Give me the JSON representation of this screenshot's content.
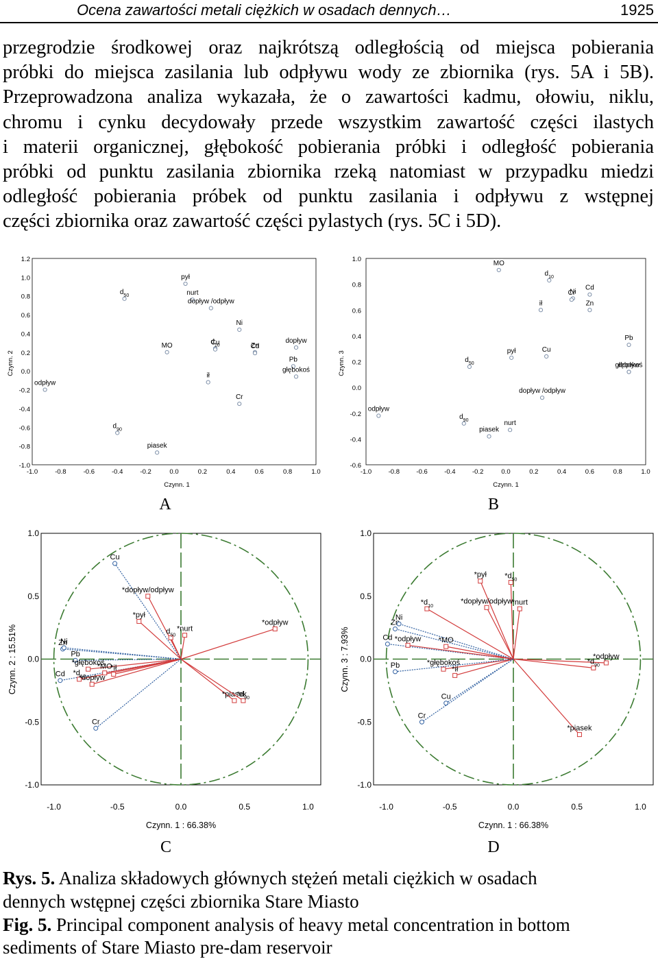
{
  "header": {
    "title": "Ocena zawartości metali ciężkich w osadach dennych…",
    "page": "1925"
  },
  "body_lines": [
    "przegrodzie środkowej oraz najkrótszą odległością od miejsca pobierania",
    "próbki do miejsca zasilania lub odpływu wody ze zbiornika (rys. 5A i 5B).",
    "Przeprowadzona analiza wykazała, że o zawartości kadmu, ołowiu, niklu,",
    "chromu i cynku decydowały przede wszystkim zawartość części ilastych",
    "i materii organicznej, głębokość pobierania próbki i odległość pobierania",
    "próbki od punktu zasilania zbiornika rzeką natomiast w przypadku miedzi",
    "odległość pobierania próbek od punktu zasilania i odpływu z wstępnej",
    "części zbiornika oraz zawartość części pylastych (rys. 5C i 5D)."
  ],
  "caption": {
    "rys_label": "Rys. 5.",
    "rys_text_1": " Analiza składowych głównych stężeń metali ciężkich w osadach",
    "rys_text_2": "dennych wstępnej części zbiornika Stare Miasto",
    "fig_label": "Fig. 5.",
    "fig_text_1": " Principal component analysis of heavy metal concentration in bottom",
    "fig_text_2": "sediments of Stare Miasto pre-dam reservoir"
  },
  "colors": {
    "active": "#d23a3a",
    "supp": "#2f5fa0",
    "circle": "#3a7a30",
    "marker": "#7d8fa8"
  },
  "chart_data": [
    {
      "panel": "A",
      "type": "scatter",
      "xlabel": "Czynn. 1",
      "ylabel": "Czynn. 2",
      "xlim": [
        -1.0,
        1.0
      ],
      "ylim": [
        -1.0,
        1.2
      ],
      "xticks": [
        "-1.0",
        "-0.8",
        "-0.6",
        "-0.4",
        "-0.2",
        "0.0",
        "0.2",
        "0.4",
        "0.6",
        "0.8",
        "1.0"
      ],
      "yticks": [
        "1.2",
        "1.0",
        "0.8",
        "0.6",
        "0.4",
        "0.2",
        "0.0",
        "-0.2",
        "-0.4",
        "-0.6",
        "-0.8",
        "-1.0"
      ],
      "points": [
        {
          "label": "odpływ",
          "x": -0.91,
          "y": -0.2
        },
        {
          "label": "d",
          "sub": "50",
          "x": -0.35,
          "y": 0.77
        },
        {
          "label": "pył",
          "x": 0.08,
          "y": 0.93
        },
        {
          "label": "nurt",
          "x": 0.13,
          "y": 0.76
        },
        {
          "label": "dopływ /odpływ",
          "x": 0.26,
          "y": 0.67
        },
        {
          "label": "Ni",
          "x": 0.46,
          "y": 0.44
        },
        {
          "label": "MO",
          "x": -0.05,
          "y": 0.2
        },
        {
          "label": "d",
          "sub": "10",
          "x": 0.29,
          "y": 0.24
        },
        {
          "label": "Cu",
          "x": 0.29,
          "y": 0.23
        },
        {
          "label": "Zn",
          "x": 0.57,
          "y": 0.2
        },
        {
          "label": "Cd",
          "x": 0.57,
          "y": 0.19
        },
        {
          "label": "dopływ",
          "x": 0.86,
          "y": 0.25
        },
        {
          "label": "Pb",
          "x": 0.84,
          "y": 0.05
        },
        {
          "label": "głębokoś",
          "x": 0.86,
          "y": -0.06
        },
        {
          "label": "ił",
          "x": 0.24,
          "y": -0.12
        },
        {
          "label": "Cr",
          "x": 0.46,
          "y": -0.35
        },
        {
          "label": "d",
          "sub": "90",
          "x": -0.4,
          "y": -0.66
        },
        {
          "label": "piasek",
          "x": -0.12,
          "y": -0.87
        }
      ]
    },
    {
      "panel": "B",
      "type": "scatter",
      "xlabel": "Czynn. 1",
      "ylabel": "Czynn. 3",
      "xlim": [
        -1.0,
        1.0
      ],
      "ylim": [
        -0.6,
        1.0
      ],
      "xticks": [
        "-1.0",
        "-0.8",
        "-0.6",
        "-0.4",
        "-0.2",
        "0.0",
        "0.2",
        "0.4",
        "0.6",
        "0.8",
        "1.0"
      ],
      "yticks": [
        "1.0",
        "0.8",
        "0.6",
        "0.4",
        "0.2",
        "0.0",
        "-0.2",
        "-0.4",
        "-0.6"
      ],
      "points": [
        {
          "label": "MO",
          "x": -0.05,
          "y": 0.91
        },
        {
          "label": "d",
          "sub": "10",
          "x": 0.31,
          "y": 0.83
        },
        {
          "label": "Cd",
          "x": 0.6,
          "y": 0.72
        },
        {
          "label": "Ni",
          "x": 0.48,
          "y": 0.69
        },
        {
          "label": "Cr",
          "x": 0.47,
          "y": 0.68
        },
        {
          "label": "ił",
          "x": 0.25,
          "y": 0.6
        },
        {
          "label": "Zn",
          "x": 0.6,
          "y": 0.6
        },
        {
          "label": "Pb",
          "x": 0.88,
          "y": 0.33
        },
        {
          "label": "dopływ",
          "x": 0.88,
          "y": 0.12
        },
        {
          "label": "głębokoś",
          "x": 0.88,
          "y": 0.12
        },
        {
          "label": "d",
          "sub": "50",
          "x": -0.26,
          "y": 0.16
        },
        {
          "label": "pył",
          "x": 0.04,
          "y": 0.23
        },
        {
          "label": "Cu",
          "x": 0.29,
          "y": 0.24
        },
        {
          "label": "dopływ /odpływ",
          "x": 0.26,
          "y": -0.08
        },
        {
          "label": "odpływ",
          "x": -0.91,
          "y": -0.22
        },
        {
          "label": "d",
          "sub": "90",
          "x": -0.3,
          "y": -0.28
        },
        {
          "label": "nurt",
          "x": 0.03,
          "y": -0.33
        },
        {
          "label": "piasek",
          "x": -0.12,
          "y": -0.38
        }
      ]
    },
    {
      "panel": "C",
      "type": "scatter",
      "xlabel": "Czynn. 1 : 66.38%",
      "ylabel": "Czynn. 2 : 15.51%",
      "xlim": [
        -1.1,
        1.1
      ],
      "ylim": [
        -1.0,
        1.0
      ],
      "xticks": [
        "-1.0",
        "-0.5",
        "0.0",
        "0.5",
        "1.0"
      ],
      "yticks": [
        "1.0",
        "0.5",
        "0.0",
        "-0.5",
        "-1.0"
      ],
      "vectors": [
        {
          "label": "Cu",
          "x": -0.52,
          "y": 0.76,
          "group": "supp"
        },
        {
          "label": "*dopływ/odpływ",
          "x": -0.26,
          "y": 0.5,
          "group": "active"
        },
        {
          "label": "*pył",
          "x": -0.33,
          "y": 0.3,
          "group": "active"
        },
        {
          "label": "*nurt",
          "x": 0.03,
          "y": 0.19,
          "group": "active"
        },
        {
          "label": "d",
          "sub": "50",
          "x": -0.08,
          "y": 0.17,
          "group": "active"
        },
        {
          "label": "*odpływ",
          "x": 0.74,
          "y": 0.24,
          "group": "active"
        },
        {
          "label": "Zn",
          "x": -0.93,
          "y": 0.08,
          "group": "supp"
        },
        {
          "label": "Ni",
          "x": -0.92,
          "y": 0.09,
          "group": "supp"
        },
        {
          "label": "Pb",
          "x": -0.83,
          "y": -0.01,
          "group": "supp"
        },
        {
          "label": "*głębokoś",
          "x": -0.73,
          "y": -0.08,
          "group": "active"
        },
        {
          "label": "Cd",
          "x": -0.95,
          "y": -0.17,
          "group": "supp"
        },
        {
          "label": "*d",
          "sub": "10",
          "x": -0.8,
          "y": -0.16,
          "group": "active"
        },
        {
          "label": "*MO",
          "x": -0.6,
          "y": -0.11,
          "group": "active"
        },
        {
          "label": "*ił",
          "x": -0.53,
          "y": -0.12,
          "group": "active"
        },
        {
          "label": "*dopływ",
          "x": -0.7,
          "y": -0.2,
          "group": "active"
        },
        {
          "label": "*piasek",
          "x": 0.42,
          "y": -0.33,
          "group": "active"
        },
        {
          "label": "*d",
          "sub": "90",
          "x": 0.49,
          "y": -0.33,
          "group": "active"
        },
        {
          "label": "Cr",
          "x": -0.67,
          "y": -0.55,
          "group": "supp"
        }
      ]
    },
    {
      "panel": "D",
      "type": "scatter",
      "xlabel": "Czynn. 1 : 66.38%",
      "ylabel": "Czynn. 3 : 7.93%",
      "xlim": [
        -1.1,
        1.1
      ],
      "ylim": [
        -1.0,
        1.0
      ],
      "xticks": [
        "-1.0",
        "-0.5",
        "0.0",
        "0.5",
        "1.0"
      ],
      "yticks": [
        "1.0",
        "0.5",
        "0.0",
        "-0.5",
        "-1.0"
      ],
      "vectors": [
        {
          "label": "*pył",
          "x": -0.26,
          "y": 0.62,
          "group": "active"
        },
        {
          "label": "*d",
          "sub": "50",
          "x": -0.02,
          "y": 0.61,
          "group": "active"
        },
        {
          "label": "*d",
          "sub": "10",
          "x": -0.68,
          "y": 0.4,
          "group": "active"
        },
        {
          "label": "*dopływ/odpływ",
          "x": -0.21,
          "y": 0.41,
          "group": "active"
        },
        {
          "label": "*nurt",
          "x": 0.05,
          "y": 0.4,
          "group": "active"
        },
        {
          "label": "Zn",
          "x": -0.93,
          "y": 0.24,
          "group": "supp"
        },
        {
          "label": "Ni",
          "x": -0.9,
          "y": 0.28,
          "group": "supp"
        },
        {
          "label": "Cd",
          "x": -0.99,
          "y": 0.12,
          "group": "supp"
        },
        {
          "label": "*odpływ",
          "x": -0.83,
          "y": 0.11,
          "group": "active"
        },
        {
          "label": "*MO",
          "x": -0.53,
          "y": 0.1,
          "group": "active"
        },
        {
          "label": "*głębokoś",
          "x": -0.55,
          "y": -0.08,
          "group": "active"
        },
        {
          "label": "*ił",
          "x": -0.46,
          "y": -0.13,
          "group": "active"
        },
        {
          "label": "Pb",
          "x": -0.93,
          "y": -0.1,
          "group": "supp"
        },
        {
          "label": "*odpływ",
          "x": 0.73,
          "y": -0.03,
          "group": "active"
        },
        {
          "label": "*d",
          "sub": "90",
          "x": 0.63,
          "y": -0.07,
          "group": "active"
        },
        {
          "label": "Cu",
          "x": -0.53,
          "y": -0.35,
          "group": "supp"
        },
        {
          "label": "Cr",
          "x": -0.72,
          "y": -0.5,
          "group": "supp"
        },
        {
          "label": "*piasek",
          "x": 0.52,
          "y": -0.6,
          "group": "active"
        }
      ]
    }
  ]
}
